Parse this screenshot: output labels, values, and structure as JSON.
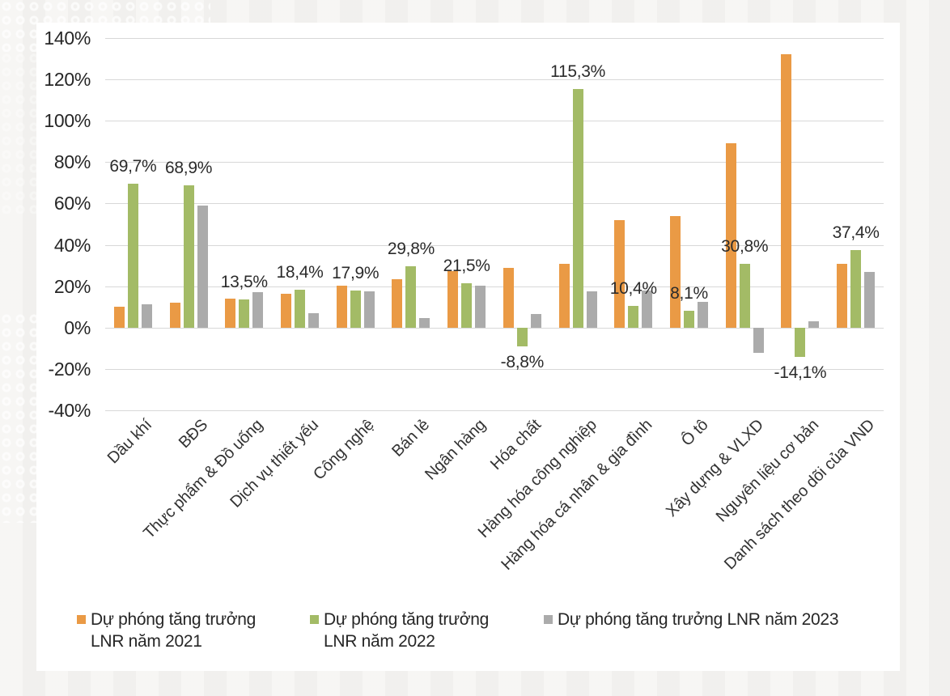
{
  "chart_data": {
    "type": "bar",
    "title": "",
    "categories": [
      "Dầu khí",
      "BĐS",
      "Thực phẩm & Đồ uống",
      "Dịch vụ thiết yếu",
      "Công nghệ",
      "Bán lẻ",
      "Ngân hàng",
      "Hóa chất",
      "Hàng hóa công nghiệp",
      "Hàng hóa cá nhân & gia đình",
      "Ô tô",
      "Xây dựng & VLXD",
      "Nguyên liệu cơ bản",
      "Danh sách theo dõi của VND"
    ],
    "series": [
      {
        "name": "Dự phóng tăng trưởng LNR năm 2021",
        "color": "#EA9A45",
        "values": [
          10,
          12,
          14,
          16.5,
          20.5,
          23.5,
          27.5,
          29,
          31,
          52,
          54,
          89,
          132,
          31
        ]
      },
      {
        "name": "Dự phóng tăng trưởng LNR năm 2022",
        "color": "#A3BB66",
        "values": [
          69.7,
          68.9,
          13.5,
          18.4,
          17.9,
          29.8,
          21.5,
          -8.8,
          115.3,
          10.4,
          8.1,
          30.8,
          -14.1,
          37.4
        ],
        "data_labels": [
          "69,7%",
          "68,9%",
          "13,5%",
          "18,4%",
          "17,9%",
          "29,8%",
          "21,5%",
          "-8,8%",
          "115,3%",
          "10,4%",
          "8,1%",
          "30,8%",
          "-14,1%",
          "37,4%"
        ]
      },
      {
        "name": "Dự phóng tăng trưởng LNR năm 2023",
        "color": "#ABABAB",
        "values": [
          11.5,
          59,
          17,
          7,
          17.5,
          4.5,
          20.5,
          6.5,
          17.5,
          18,
          12.5,
          -12,
          3,
          27
        ]
      }
    ],
    "y_axis": {
      "ticks": [
        {
          "value": 140,
          "label": "140%"
        },
        {
          "value": 120,
          "label": "120%"
        },
        {
          "value": 100,
          "label": "100%"
        },
        {
          "value": 80,
          "label": "80%"
        },
        {
          "value": 60,
          "label": "60%"
        },
        {
          "value": 40,
          "label": "40%"
        },
        {
          "value": 20,
          "label": "20%"
        },
        {
          "value": 0,
          "label": "0%"
        },
        {
          "value": -20,
          "label": "-20%"
        },
        {
          "value": -40,
          "label": "-40%"
        }
      ]
    },
    "ylim": [
      -40,
      140
    ],
    "grid": true,
    "legend_position": "bottom",
    "legend": [
      {
        "lines": [
          "Dự phóng tăng trưởng",
          "LNR năm 2021"
        ],
        "color": "#EA9A45"
      },
      {
        "lines": [
          "Dự phóng tăng trưởng",
          "LNR năm 2022"
        ],
        "color": "#A3BB66"
      },
      {
        "lines": [
          "Dự phóng tăng trưởng LNR năm 2023"
        ],
        "color": "#ABABAB"
      }
    ]
  }
}
